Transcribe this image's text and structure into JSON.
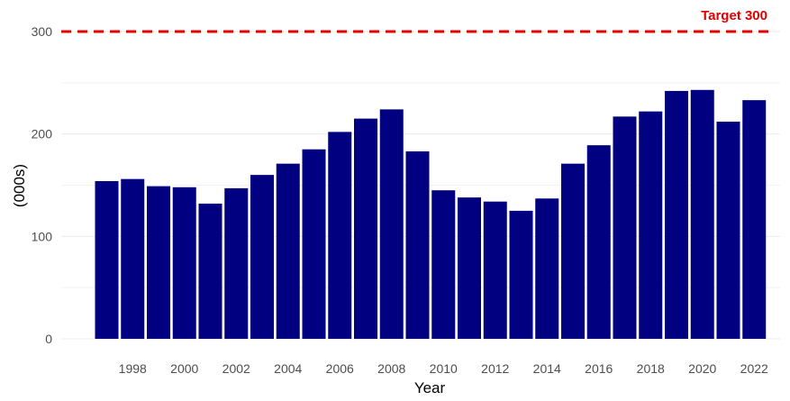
{
  "chart_data": {
    "type": "bar",
    "title": "",
    "xlabel": "Year",
    "ylabel": "(000s)",
    "ylim": [
      0,
      300
    ],
    "y_ticks": [
      0,
      100,
      200,
      300
    ],
    "x_tick_labels": [
      "1998",
      "2000",
      "2002",
      "2004",
      "2006",
      "2008",
      "2010",
      "2012",
      "2014",
      "2016",
      "2018",
      "2020",
      "2022"
    ],
    "categories": [
      1997,
      1998,
      1999,
      2000,
      2001,
      2002,
      2003,
      2004,
      2005,
      2006,
      2007,
      2008,
      2009,
      2010,
      2011,
      2012,
      2013,
      2014,
      2015,
      2016,
      2017,
      2018,
      2019,
      2020,
      2021,
      2022
    ],
    "values": [
      154,
      156,
      149,
      148,
      132,
      147,
      160,
      171,
      185,
      202,
      215,
      224,
      183,
      145,
      138,
      134,
      125,
      137,
      171,
      189,
      217,
      222,
      242,
      243,
      212,
      233
    ],
    "bar_color": "#000080",
    "grid": true,
    "reference_line": {
      "value": 300,
      "label": "Target 300",
      "color": "#e00000"
    }
  }
}
